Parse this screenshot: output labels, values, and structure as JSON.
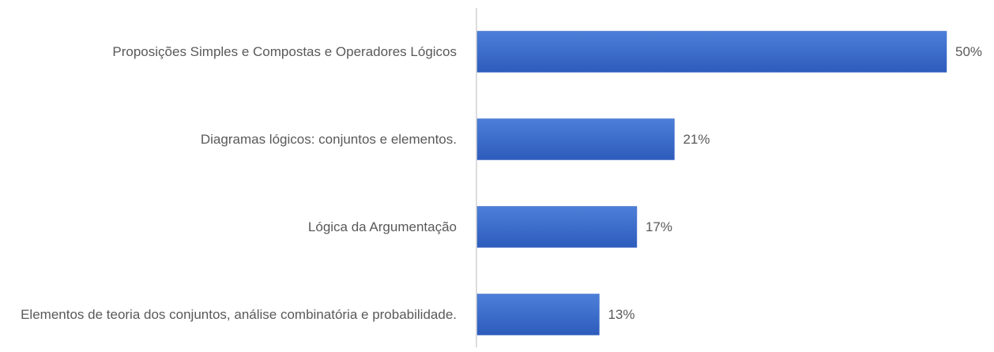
{
  "chart_data": {
    "type": "bar",
    "orientation": "horizontal",
    "categories": [
      "Proposições Simples e Compostas e Operadores Lógicos",
      "Diagramas lógicos: conjuntos e elementos.",
      "Lógica da Argumentação",
      "Elementos de teoria dos conjuntos, análise combinatória e probabilidade."
    ],
    "values": [
      50,
      21,
      17,
      13
    ],
    "value_labels": [
      "50%",
      "21%",
      "17%",
      "13%"
    ],
    "color": "#4472c4"
  }
}
